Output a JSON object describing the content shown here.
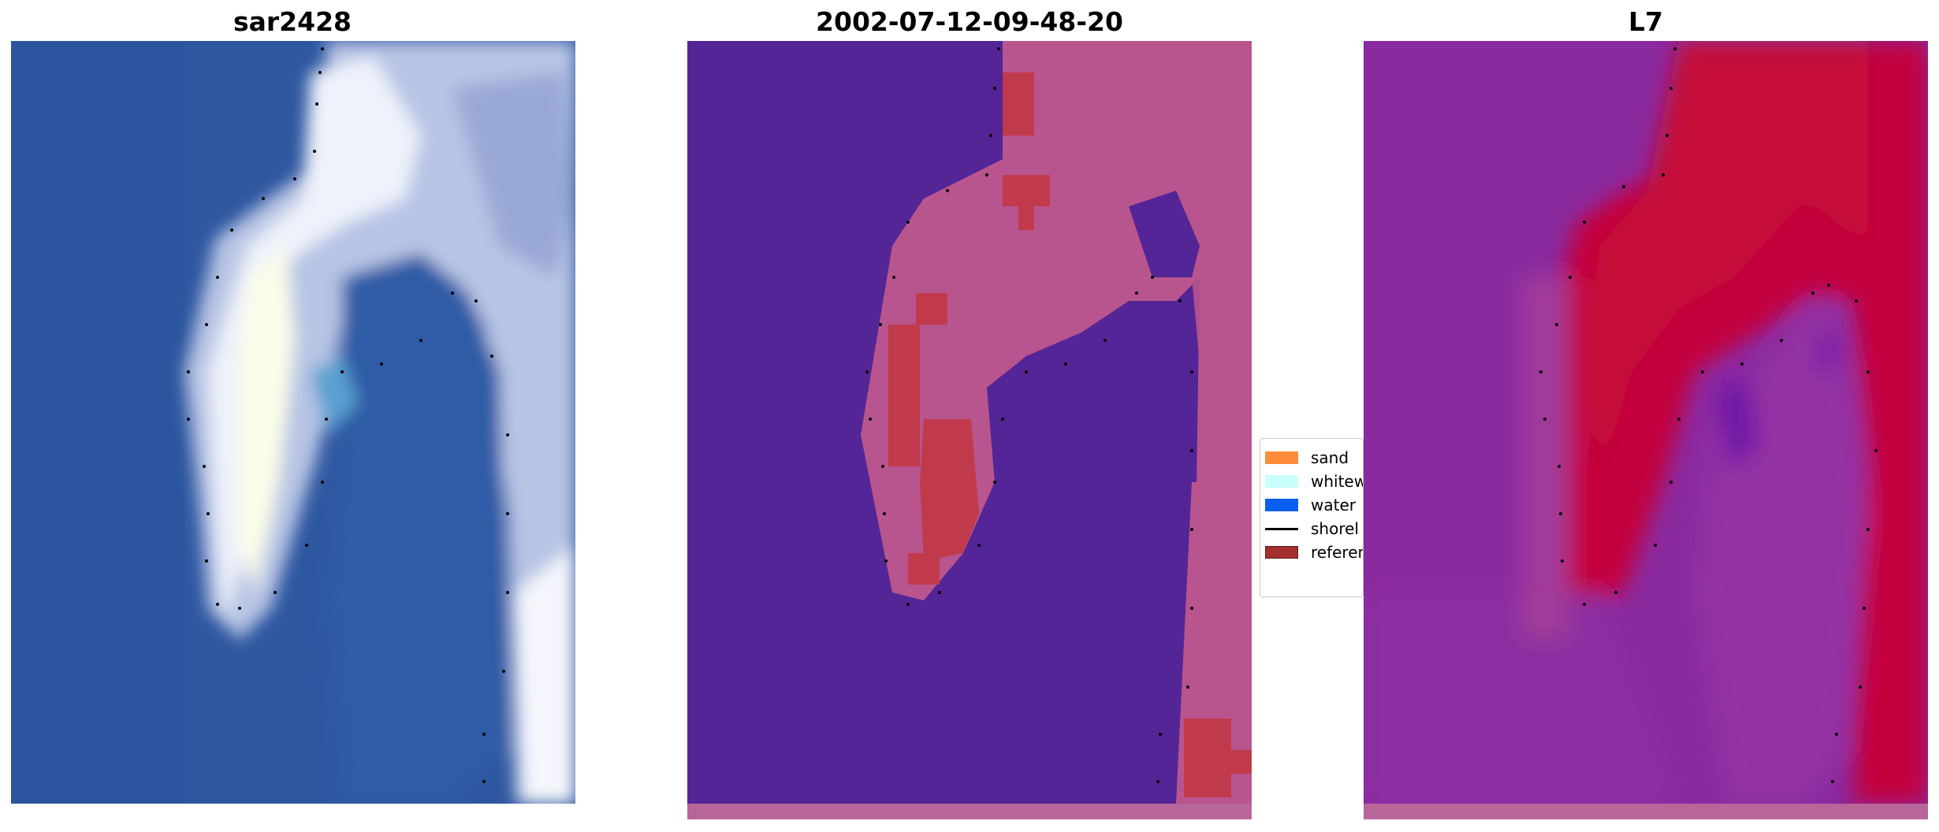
{
  "panels": [
    {
      "title": "sar2428",
      "kind": "rgb"
    },
    {
      "title": "2002-07-12-09-48-20",
      "kind": "classified"
    },
    {
      "title": "L7",
      "kind": "index"
    }
  ],
  "legend": {
    "items": [
      {
        "label": "sand",
        "color": "#ff8c3a"
      },
      {
        "label": "whitew",
        "color": "#c9fffc"
      },
      {
        "label": "water",
        "color": "#0a5ff0"
      },
      {
        "label": "shorel",
        "color": "#000000"
      },
      {
        "label": "referen",
        "color": "#a52f2f"
      }
    ]
  },
  "colors": {
    "water_blue": "#2e57a0",
    "foam_white": "#e8eef8",
    "class_water": "#542596",
    "class_land": "#b8558e",
    "class_sand": "#c13a4c",
    "index_low": "#8a2aa0",
    "index_high": "#c4063c"
  }
}
